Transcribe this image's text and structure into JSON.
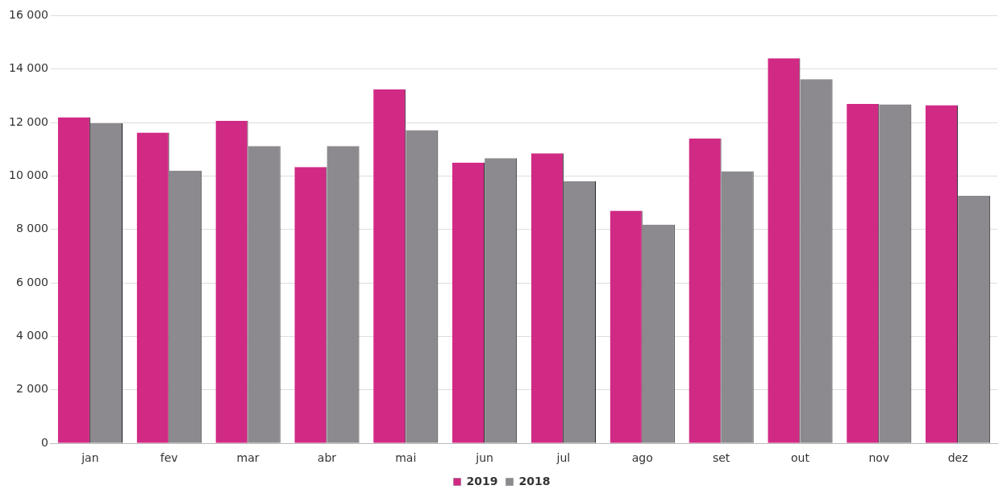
{
  "chart_data": {
    "type": "bar",
    "categories": [
      "jan",
      "fev",
      "mar",
      "abr",
      "mai",
      "jun",
      "jul",
      "ago",
      "set",
      "out",
      "nov",
      "dez"
    ],
    "series": [
      {
        "name": "2019",
        "color": "#d12a85",
        "values": [
          12200,
          11630,
          12060,
          10340,
          13240,
          10500,
          10850,
          8700,
          11410,
          14410,
          12700,
          12650
        ]
      },
      {
        "name": "2018",
        "color": "#8c8a8f",
        "values": [
          11970,
          10200,
          11120,
          11120,
          11720,
          10670,
          9800,
          8180,
          10180,
          13620,
          12680,
          9260
        ]
      }
    ],
    "ylim": [
      0,
      16000
    ],
    "yticks": [
      {
        "value": 0,
        "label": "0"
      },
      {
        "value": 2000,
        "label": "2 000"
      },
      {
        "value": 4000,
        "label": "4 000"
      },
      {
        "value": 6000,
        "label": "6 000"
      },
      {
        "value": 8000,
        "label": "8 000"
      },
      {
        "value": 10000,
        "label": "10 000"
      },
      {
        "value": 12000,
        "label": "12 000"
      },
      {
        "value": 14000,
        "label": "14 000"
      },
      {
        "value": 16000,
        "label": "16 000"
      }
    ],
    "grid": "y",
    "legend": "bottom"
  }
}
